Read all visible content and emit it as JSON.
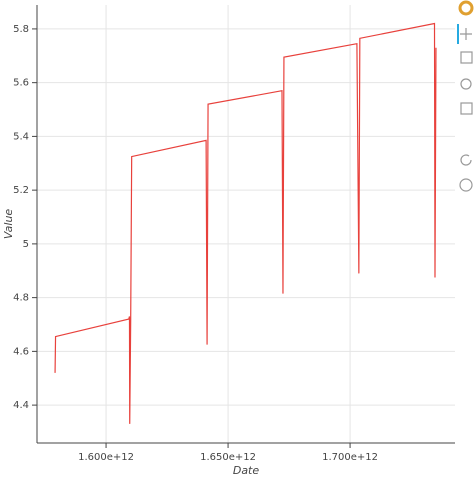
{
  "chart_data": {
    "type": "line",
    "x_label": "Date",
    "y_label": "Value",
    "series": [
      {
        "color": "#e8413c",
        "x": [
          1579100000000,
          1579300000000,
          1609300000000,
          1609600000000,
          1609700000000,
          1610100000000,
          1610500000000,
          1641000000000,
          1641400000000,
          1641800000000,
          1672100000000,
          1672500000000,
          1672900000000,
          1702800000000,
          1703600000000,
          1704000000000,
          1734600000000,
          1734800000000,
          1735200000000
        ],
        "values": [
          4.52,
          4.655,
          4.72,
          4.73,
          4.33,
          4.72,
          5.325,
          5.385,
          4.625,
          5.52,
          5.57,
          4.815,
          5.695,
          5.745,
          4.89,
          5.765,
          5.82,
          4.875,
          5.73
        ]
      }
    ],
    "xlim": [
      1571700000000,
      1743000000000
    ],
    "xticks": [
      {
        "value": 1600000000000,
        "label": "1.600e+12"
      },
      {
        "value": 1650000000000,
        "label": "1.650e+12"
      },
      {
        "value": 1700000000000,
        "label": "1.700e+12"
      }
    ],
    "ylim": [
      4.259,
      5.889
    ],
    "yticks": [
      4.4,
      4.6,
      4.8,
      5,
      5.2,
      5.4,
      5.6,
      5.8
    ],
    "grid": true
  }
}
